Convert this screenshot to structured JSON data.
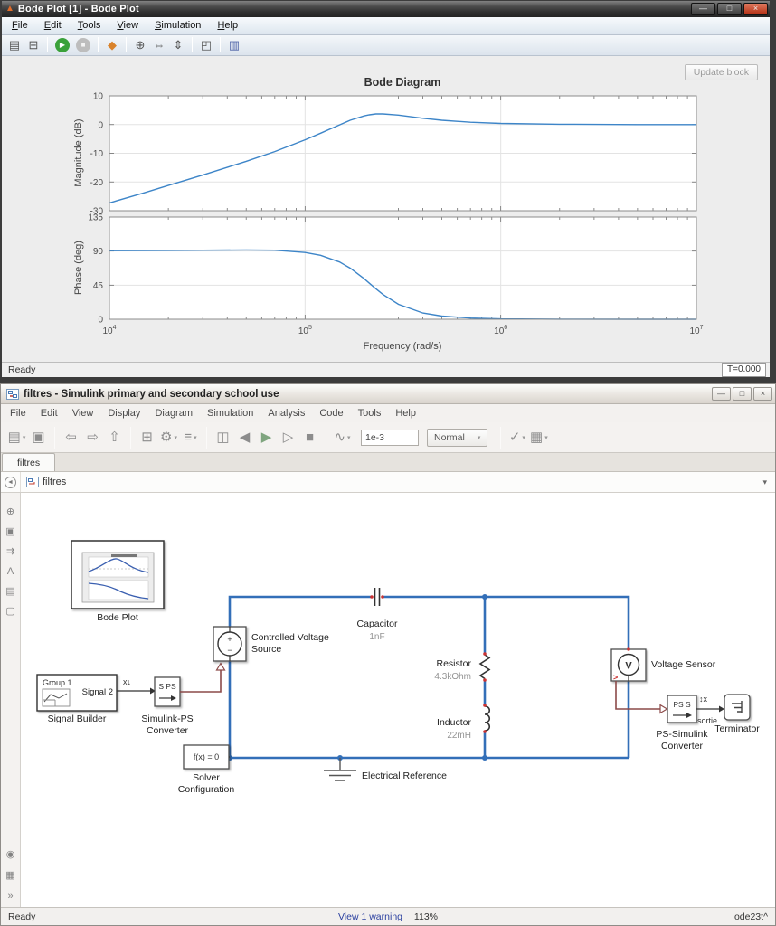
{
  "bode_window": {
    "title": "Bode Plot [1] - Bode Plot",
    "app_icon": "▲",
    "controls": [
      {
        "name": "minimize-button",
        "glyph": "—"
      },
      {
        "name": "maximize-button",
        "glyph": "□"
      },
      {
        "name": "close-button",
        "glyph": "×",
        "cls": "close"
      }
    ],
    "menu": [
      "File",
      "Edit",
      "Tools",
      "View",
      "Simulation",
      "Help"
    ],
    "toolbar": [
      {
        "name": "report-icon",
        "glyph": "▤"
      },
      {
        "name": "print-icon",
        "glyph": "⊟"
      },
      {
        "sep": true
      },
      {
        "name": "play-icon",
        "glyph": "▶",
        "round": true,
        "bg": "#3aa13a",
        "fg": "#ffffff"
      },
      {
        "name": "stop-icon",
        "glyph": "■",
        "round": true,
        "bg": "#bdbdbd",
        "fg": "#f3f3f3"
      },
      {
        "sep": true
      },
      {
        "name": "highlight-block-icon",
        "glyph": "◆",
        "color": "#d9822b"
      },
      {
        "sep": true
      },
      {
        "name": "zoom-in-icon",
        "glyph": "⊕"
      },
      {
        "name": "zoom-x-icon",
        "glyph": "⇔"
      },
      {
        "name": "zoom-y-icon",
        "glyph": "⇕"
      },
      {
        "sep": true
      },
      {
        "name": "fit-view-icon",
        "glyph": "◰"
      },
      {
        "sep": true
      },
      {
        "name": "legend-icon",
        "glyph": "▥",
        "color": "#4a5fa5"
      }
    ],
    "update_block_label": "Update block",
    "status_left": "Ready",
    "status_right": "T=0.000"
  },
  "chart_data": {
    "type": "line",
    "title": "Bode Diagram",
    "xlabel": "Frequency  (rad/s)",
    "x_scale": "log",
    "grid": true,
    "xlim": [
      10000,
      10000000
    ],
    "x_ticks_exponents": [
      4,
      5,
      6,
      7
    ],
    "magnitude": {
      "ylabel": "Magnitude (dB)",
      "yticks": [
        10,
        0,
        -10,
        -20,
        -30
      ],
      "ylim": [
        -30,
        10
      ]
    },
    "phase": {
      "ylabel": "Phase (deg)",
      "yticks": [
        135,
        90,
        45,
        0
      ],
      "ylim": [
        0,
        135
      ]
    },
    "series": {
      "omega": [
        10000,
        15000,
        20000,
        30000,
        50000,
        70000,
        100000,
        120000,
        150000,
        170000,
        200000,
        213000,
        230000,
        250000,
        300000,
        400000,
        500000,
        700000,
        1000000,
        2000000,
        5000000,
        10000000
      ],
      "magnitude_db": [
        -27.3,
        -23.8,
        -21.2,
        -17.6,
        -12.8,
        -9.4,
        -5.3,
        -3.0,
        -0.1,
        1.5,
        3.0,
        3.4,
        3.7,
        3.7,
        3.3,
        2.2,
        1.5,
        0.8,
        0.4,
        0.1,
        0.0,
        0.0
      ],
      "phase_deg": [
        90.5,
        90.7,
        90.9,
        91.2,
        91.5,
        91.1,
        88.2,
        84.5,
        75.6,
        67.5,
        53.6,
        47.6,
        40.3,
        32.7,
        19.7,
        8.3,
        4.2,
        1.5,
        0.5,
        0.1,
        0.0,
        0.0
      ]
    }
  },
  "simulink_window": {
    "title": "filtres - Simulink primary and secondary school use",
    "controls": [
      {
        "name": "minimize-button",
        "glyph": "—"
      },
      {
        "name": "restore-button",
        "glyph": "□"
      },
      {
        "name": "close-button",
        "glyph": "×"
      }
    ],
    "menu": [
      "File",
      "Edit",
      "View",
      "Display",
      "Diagram",
      "Simulation",
      "Analysis",
      "Code",
      "Tools",
      "Help"
    ],
    "toolbar": {
      "left": [
        {
          "name": "new-model-icon",
          "glyph": "▤",
          "dd": true
        },
        {
          "name": "save-icon",
          "glyph": "▣"
        },
        {
          "sep": true
        },
        {
          "name": "back-icon",
          "glyph": "⇦"
        },
        {
          "name": "forward-icon",
          "glyph": "⇨"
        },
        {
          "name": "up-to-parent-icon",
          "glyph": "⇧"
        },
        {
          "sep": true
        },
        {
          "name": "library-browser-icon",
          "glyph": "⊞"
        },
        {
          "name": "model-settings-icon",
          "glyph": "⚙",
          "dd": true
        },
        {
          "name": "model-config-icon",
          "glyph": "≡",
          "dd": true
        },
        {
          "sep": true
        },
        {
          "name": "update-diagram-icon",
          "glyph": "◫"
        },
        {
          "name": "step-back-icon",
          "glyph": "◀"
        },
        {
          "name": "run-icon",
          "glyph": "▶",
          "color": "#7fa57f"
        },
        {
          "name": "step-forward-icon",
          "glyph": "▷"
        },
        {
          "name": "stop-icon",
          "glyph": "■"
        },
        {
          "sep": true
        },
        {
          "name": "simulation-display-icon",
          "glyph": "∿",
          "dd": true
        }
      ],
      "sim_time": "1e-3",
      "mode": "Normal",
      "right": [
        {
          "name": "update-check-icon",
          "glyph": "✓",
          "dd": true
        },
        {
          "name": "build-icon",
          "glyph": "▦",
          "dd": true
        }
      ]
    },
    "tab": "filtres",
    "breadcrumb": {
      "back_glyph": "◄",
      "name": "filtres",
      "caret": "▾"
    },
    "palette_top": [
      {
        "name": "zoom-icon",
        "glyph": "⊕"
      },
      {
        "name": "fit-to-view-icon",
        "glyph": "▣"
      },
      {
        "name": "signal-routing-icon",
        "glyph": "⇉"
      },
      {
        "name": "annotation-icon",
        "glyph": "A"
      },
      {
        "name": "image-icon",
        "glyph": "▤"
      },
      {
        "name": "area-box-icon",
        "glyph": "▢"
      }
    ],
    "palette_bottom": [
      {
        "name": "camera-icon",
        "glyph": "◉"
      },
      {
        "name": "viewmarks-icon",
        "glyph": "▦"
      },
      {
        "name": "expand-icon",
        "glyph": "»"
      }
    ],
    "status": {
      "left": "Ready",
      "warning": "View 1 warning",
      "zoom": "113%",
      "solver": "ode23t^"
    },
    "diagram": {
      "bode_plot": {
        "label": "Bode Plot"
      },
      "signal_builder": {
        "group": "Group 1",
        "signal": "Signal 2",
        "label": "Signal Builder"
      },
      "signal_annotation": "x↓",
      "simulink_ps": {
        "ports": "S PS",
        "label1": "Simulink-PS",
        "label2": "Converter"
      },
      "cvs": {
        "plus": "+",
        "minus": "−",
        "label1": "Controlled Voltage",
        "label2": "Source"
      },
      "capacitor": {
        "label": "Capacitor",
        "value": "1nF"
      },
      "resistor": {
        "label": "Resistor",
        "value": "4.3kOhm"
      },
      "inductor": {
        "label": "Inductor",
        "value": "22mH"
      },
      "sensor": {
        "symbol": "V",
        "port": ">",
        "label": "Voltage Sensor"
      },
      "ps_simulink": {
        "ports": "PS S",
        "label1": "PS-Simulink",
        "label2": "Converter"
      },
      "out_annotation": "↕x",
      "signal_name": "sortie",
      "terminator": {
        "label": "Terminator"
      },
      "solver": {
        "eq": "f(x) = 0",
        "label1": "Solver",
        "label2": "Configuration"
      },
      "ground": {
        "label": "Electrical Reference"
      }
    }
  }
}
